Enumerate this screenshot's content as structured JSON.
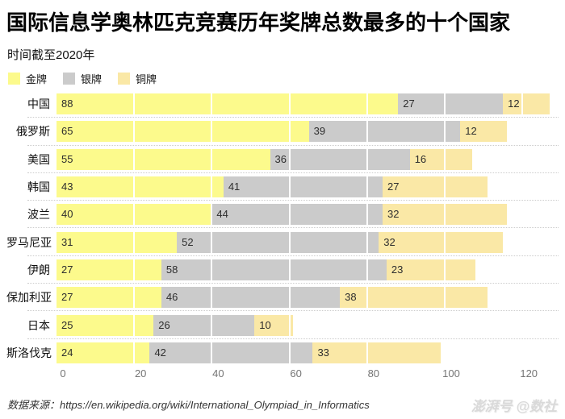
{
  "header": {
    "title": "国际信息学奥林匹克竞赛历年奖牌总数最多的十个国家",
    "subtitle": "时间截至2020年"
  },
  "legend": [
    {
      "label": "金牌",
      "color": "#FCFA8C"
    },
    {
      "label": "银牌",
      "color": "#CBCBCB"
    },
    {
      "label": "铜牌",
      "color": "#FAE8A6"
    }
  ],
  "chart_data": {
    "type": "bar",
    "orientation": "horizontal",
    "stacked": true,
    "title": "国际信息学奥林匹克竞赛历年奖牌总数最多的十个国家",
    "subtitle": "时间截至2020年",
    "categories": [
      "中国",
      "俄罗斯",
      "美国",
      "韩国",
      "波兰",
      "罗马尼亚",
      "伊朗",
      "保加利亚",
      "日本",
      "斯洛伐克"
    ],
    "series": [
      {
        "name": "金牌",
        "color": "#FCFA8C",
        "values": [
          88,
          65,
          55,
          43,
          40,
          31,
          27,
          27,
          25,
          24
        ]
      },
      {
        "name": "银牌",
        "color": "#CBCBCB",
        "values": [
          27,
          39,
          36,
          41,
          44,
          52,
          58,
          46,
          26,
          42
        ]
      },
      {
        "name": "铜牌",
        "color": "#FAE8A6",
        "values": [
          12,
          12,
          16,
          27,
          32,
          32,
          23,
          38,
          10,
          33
        ]
      }
    ],
    "x_ticks": [
      0,
      20,
      40,
      60,
      80,
      100,
      120
    ],
    "xlim": [
      0,
      120
    ],
    "xlabel": "",
    "ylabel": "",
    "grid": "vertical-white-lines-over-bars",
    "legend_position": "top-left",
    "value_labels": "start-of-segment"
  },
  "footer": {
    "source": "数据来源：https://en.wikipedia.org/wiki/International_Olympiad_in_Informatics",
    "watermark": "澎湃号 @数社"
  }
}
